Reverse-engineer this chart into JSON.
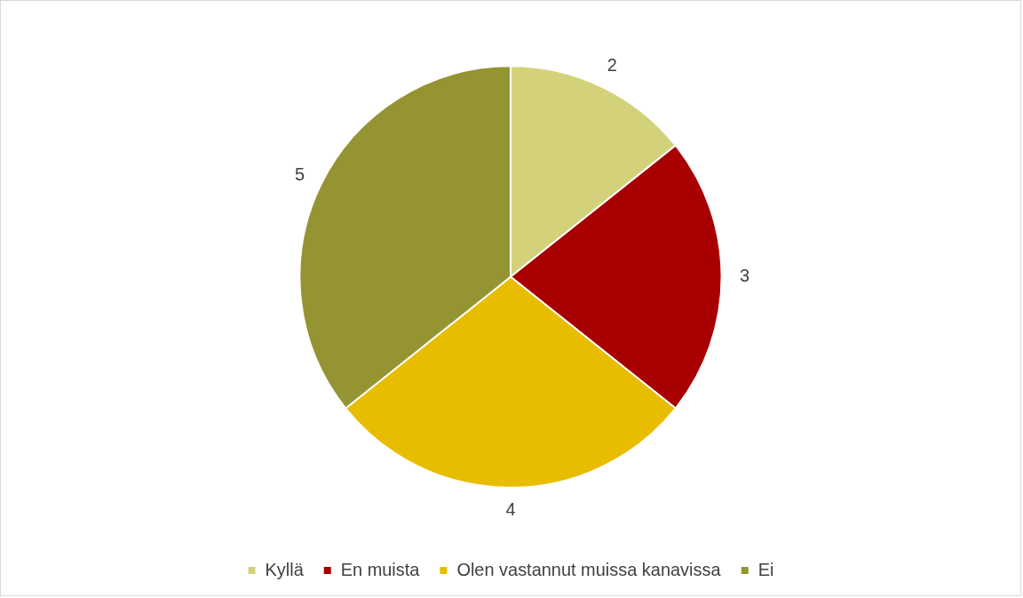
{
  "chart_data": {
    "type": "pie",
    "categories": [
      "Kyllä",
      "En muista",
      "Olen vastannut muissa kanavissa",
      "Ei"
    ],
    "values": [
      2,
      3,
      4,
      5
    ],
    "colors": [
      "#d3d27a",
      "#a80000",
      "#e8bd00",
      "#949433"
    ],
    "data_labels": true,
    "legend": "bottom"
  }
}
